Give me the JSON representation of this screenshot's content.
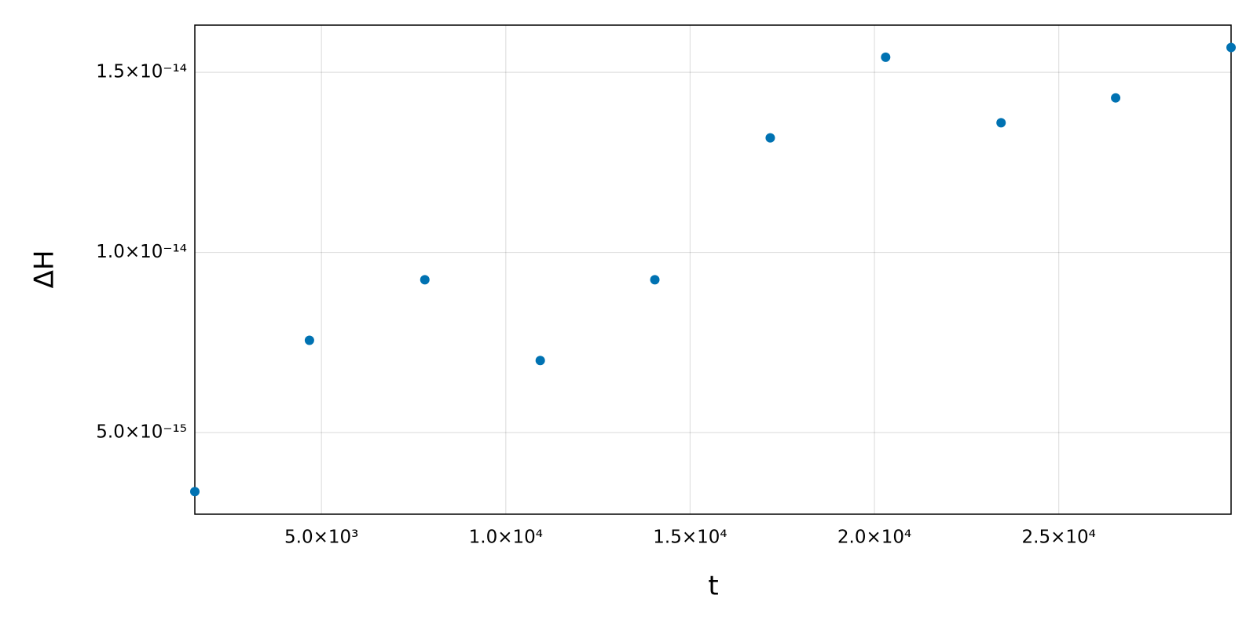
{
  "chart_data": {
    "type": "scatter",
    "x_label": "t",
    "y_label": "ΔH",
    "x": [
      1565,
      4674,
      7804,
      10935,
      14043,
      17174,
      20304,
      23435,
      26543,
      29674
    ],
    "series": [
      {
        "color": "#0072b2",
        "values": [
          3.36e-15,
          7.56e-15,
          9.24e-15,
          7e-15,
          9.24e-15,
          1.318e-14,
          1.542e-14,
          1.36e-14,
          1.429e-14,
          1.569e-14
        ]
      }
    ],
    "xlim": [
      1565,
      29674
    ],
    "ylim": [
      2.733e-15,
      1.631e-14
    ],
    "xticks": [
      {
        "value": 5000,
        "label": "5.0×10³"
      },
      {
        "value": 10000,
        "label": "1.0×10⁴"
      },
      {
        "value": 15000,
        "label": "1.5×10⁴"
      },
      {
        "value": 20000,
        "label": "2.0×10⁴"
      },
      {
        "value": 25000,
        "label": "2.5×10⁴"
      }
    ],
    "yticks": [
      {
        "value": 5e-15,
        "label": "5.0×10⁻¹⁵"
      },
      {
        "value": 1e-14,
        "label": "1.0×10⁻¹⁴"
      },
      {
        "value": 1.5e-14,
        "label": "1.5×10⁻¹⁴"
      }
    ],
    "grid": true
  }
}
